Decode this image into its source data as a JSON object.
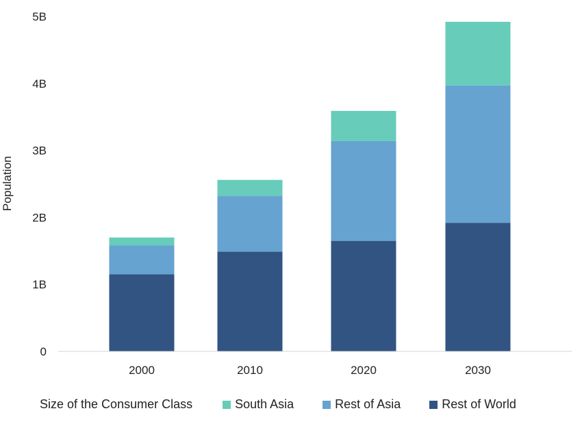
{
  "chart_data": {
    "type": "bar",
    "stacked": true,
    "categories": [
      "2000",
      "2010",
      "2020",
      "2030"
    ],
    "series": [
      {
        "name": "Rest of World",
        "color": "#325483",
        "values": [
          1.15,
          1.49,
          1.65,
          1.92
        ]
      },
      {
        "name": "Rest of Asia",
        "color": "#66a3d0",
        "values": [
          0.43,
          0.83,
          1.49,
          2.05
        ]
      },
      {
        "name": "South Asia",
        "color": "#67ccb9",
        "values": [
          0.12,
          0.24,
          0.45,
          0.95
        ]
      }
    ],
    "ylabel": "Population",
    "xlabel": "",
    "ylim": [
      0,
      5
    ],
    "yticks": [
      {
        "value": 0,
        "label": "0"
      },
      {
        "value": 1,
        "label": "1B"
      },
      {
        "value": 2,
        "label": "2B"
      },
      {
        "value": 3,
        "label": "3B"
      },
      {
        "value": 4,
        "label": "4B"
      },
      {
        "value": 5,
        "label": "5B"
      }
    ],
    "grid": false,
    "legend_position": "bottom",
    "legend_title": "Size of the Consumer Class",
    "legend_order": [
      "South Asia",
      "Rest of Asia",
      "Rest of World"
    ]
  }
}
